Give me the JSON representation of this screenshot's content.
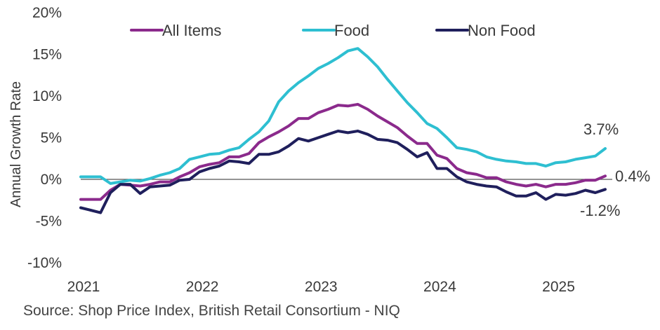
{
  "source": "Source: Shop Price Index, British Retail Consortium - NIQ",
  "chart_data": {
    "type": "line",
    "title": "",
    "xlabel": "",
    "ylabel": "Annual Growth Rate",
    "ylim": [
      -10,
      20
    ],
    "y_ticks": [
      -10,
      -5,
      0,
      5,
      10,
      15,
      20
    ],
    "y_tick_labels": [
      "-10%",
      "-5%",
      "0%",
      "5%",
      "10%",
      "15%",
      "20%"
    ],
    "x_tick_labels": [
      "2021",
      "2022",
      "2023",
      "2024",
      "2025"
    ],
    "x_tick_dates": [
      "2021-01",
      "2022-01",
      "2023-01",
      "2024-01",
      "2025-01"
    ],
    "legend_position": "top",
    "grid": false,
    "x": [
      "2021-01",
      "2021-02",
      "2021-03",
      "2021-04",
      "2021-05",
      "2021-06",
      "2021-07",
      "2021-08",
      "2021-09",
      "2021-10",
      "2021-11",
      "2021-12",
      "2022-01",
      "2022-02",
      "2022-03",
      "2022-04",
      "2022-05",
      "2022-06",
      "2022-07",
      "2022-08",
      "2022-09",
      "2022-10",
      "2022-11",
      "2022-12",
      "2023-01",
      "2023-02",
      "2023-03",
      "2023-04",
      "2023-05",
      "2023-06",
      "2023-07",
      "2023-08",
      "2023-09",
      "2023-10",
      "2023-11",
      "2023-12",
      "2024-01",
      "2024-02",
      "2024-03",
      "2024-04",
      "2024-05",
      "2024-06",
      "2024-07",
      "2024-08",
      "2024-09",
      "2024-10",
      "2024-11",
      "2024-12",
      "2025-01",
      "2025-02",
      "2025-03",
      "2025-04",
      "2025-05",
      "2025-06"
    ],
    "series": [
      {
        "name": "All Items",
        "color": "#8b2a8c",
        "values": [
          -2.4,
          -2.4,
          -2.4,
          -1.3,
          -0.6,
          -0.7,
          -0.8,
          -0.6,
          -0.3,
          -0.3,
          0.3,
          0.8,
          1.5,
          1.8,
          2.0,
          2.7,
          2.7,
          3.1,
          4.4,
          5.1,
          5.7,
          6.4,
          7.3,
          7.3,
          8.0,
          8.4,
          8.9,
          8.8,
          9.0,
          8.4,
          7.6,
          6.9,
          6.2,
          5.2,
          4.3,
          4.3,
          2.9,
          2.5,
          1.3,
          0.8,
          0.6,
          0.2,
          0.2,
          -0.3,
          -0.6,
          -0.8,
          -0.6,
          -0.9,
          -0.6,
          -0.6,
          -0.4,
          -0.1,
          -0.1,
          0.4
        ]
      },
      {
        "name": "Food",
        "color": "#2ebfd1",
        "values": [
          0.3,
          0.3,
          0.3,
          -0.5,
          -0.3,
          -0.1,
          -0.2,
          0.1,
          0.5,
          0.8,
          1.3,
          2.4,
          2.7,
          3.0,
          3.1,
          3.5,
          3.8,
          4.8,
          5.7,
          7.0,
          9.3,
          10.6,
          11.6,
          12.4,
          13.3,
          13.9,
          14.6,
          15.4,
          15.7,
          14.7,
          13.5,
          12.0,
          10.6,
          9.2,
          8.0,
          6.7,
          6.1,
          5.0,
          3.8,
          3.6,
          3.3,
          2.7,
          2.4,
          2.2,
          2.1,
          1.9,
          1.9,
          1.6,
          2.0,
          2.1,
          2.4,
          2.6,
          2.8,
          3.7
        ]
      },
      {
        "name": "Non Food",
        "color": "#1f1f5c",
        "values": [
          -3.4,
          -3.7,
          -4.0,
          -1.6,
          -0.6,
          -0.6,
          -1.7,
          -0.9,
          -0.8,
          -0.7,
          -0.1,
          0.0,
          0.9,
          1.3,
          1.6,
          2.2,
          2.1,
          1.9,
          3.0,
          3.0,
          3.3,
          4.0,
          4.9,
          4.6,
          5.0,
          5.4,
          5.8,
          5.6,
          5.8,
          5.4,
          4.8,
          4.7,
          4.4,
          3.6,
          2.7,
          3.2,
          1.3,
          1.3,
          0.3,
          -0.3,
          -0.6,
          -0.8,
          -0.9,
          -1.5,
          -2.0,
          -2.0,
          -1.6,
          -2.4,
          -1.8,
          -1.9,
          -1.7,
          -1.3,
          -1.6,
          -1.2
        ]
      }
    ],
    "end_labels": [
      {
        "series": "Food",
        "text": "3.7%"
      },
      {
        "series": "All Items",
        "text": "0.4%"
      },
      {
        "series": "Non Food",
        "text": "-1.2%"
      }
    ]
  }
}
